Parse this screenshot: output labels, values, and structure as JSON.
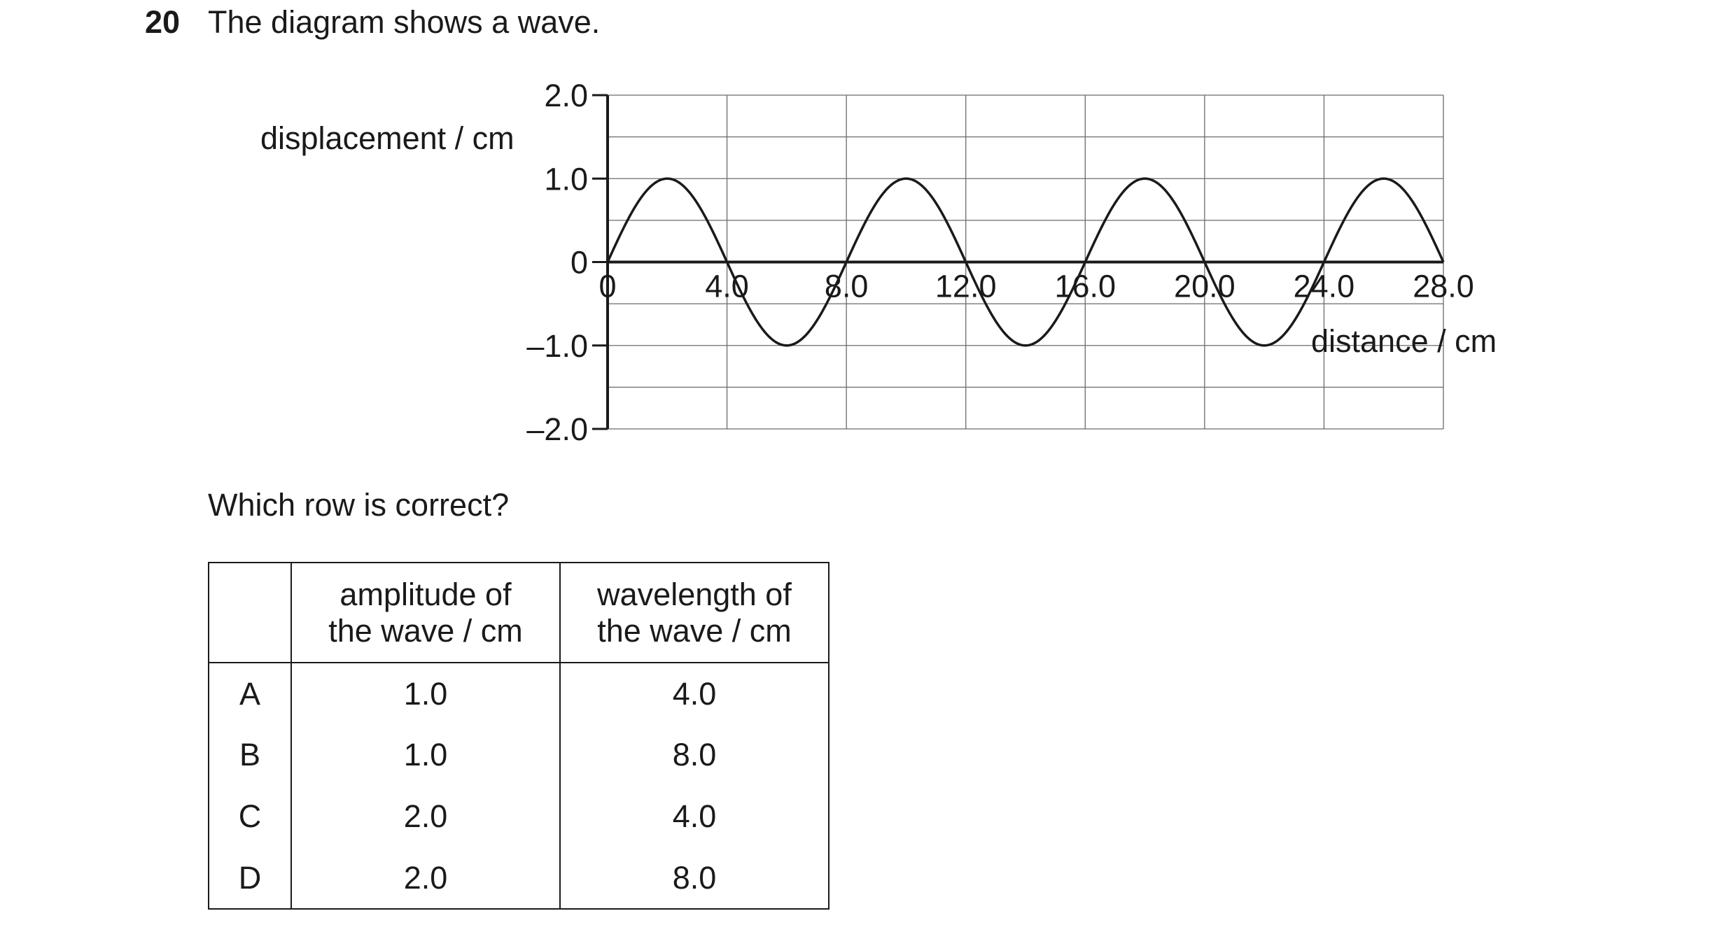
{
  "question": {
    "number": "20",
    "text": "The diagram shows a wave."
  },
  "chart_data": {
    "type": "line",
    "ylabel": "displacement / cm",
    "xlabel": "distance / cm",
    "xlim": [
      0,
      28.0
    ],
    "ylim": [
      -2.0,
      2.0
    ],
    "x_ticks": [
      0,
      4.0,
      8.0,
      12.0,
      16.0,
      20.0,
      24.0,
      28.0
    ],
    "x_tick_labels": [
      "0",
      "4.0",
      "8.0",
      "12.0",
      "16.0",
      "20.0",
      "24.0",
      "28.0"
    ],
    "y_ticks": [
      2.0,
      1.0,
      0,
      -1.0,
      -2.0
    ],
    "y_tick_labels": [
      "2.0",
      "1.0",
      "0",
      "–1.0",
      "–2.0"
    ],
    "grid": true,
    "series": [
      {
        "amplitude": 1.0,
        "wavelength": 8.0,
        "x": [
          0,
          2,
          4,
          6,
          8,
          10,
          12,
          14,
          16,
          18,
          20,
          22,
          24,
          26,
          28
        ],
        "y": [
          0,
          1.0,
          0,
          -1.0,
          0,
          1.0,
          0,
          -1.0,
          0,
          1.0,
          0,
          -1.0,
          0,
          1.0,
          0
        ]
      }
    ]
  },
  "prompt": "Which row is correct?",
  "table": {
    "headers": {
      "amplitude_line1": "amplitude of",
      "amplitude_line2": "the wave / cm",
      "wavelength_line1": "wavelength of",
      "wavelength_line2": "the wave / cm"
    },
    "rows": [
      {
        "letter": "A",
        "amplitude": "1.0",
        "wavelength": "4.0"
      },
      {
        "letter": "B",
        "amplitude": "1.0",
        "wavelength": "8.0"
      },
      {
        "letter": "C",
        "amplitude": "2.0",
        "wavelength": "4.0"
      },
      {
        "letter": "D",
        "amplitude": "2.0",
        "wavelength": "8.0"
      }
    ]
  }
}
